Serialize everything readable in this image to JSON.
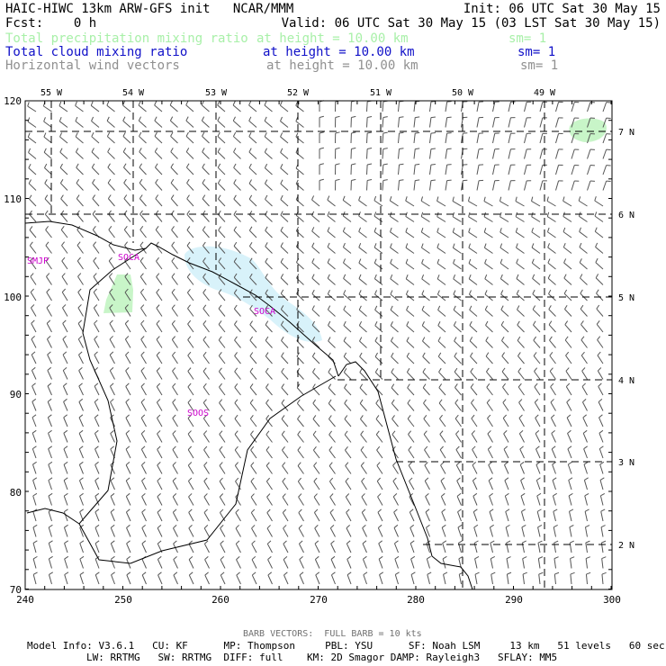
{
  "header": {
    "left1": "HAIC-HIWC 13km ARW-GFS init   NCAR/MMM",
    "right1": "Init: 06 UTC Sat 30 May 15",
    "left2": "Fcst:    0 h",
    "right2": "Valid: 06 UTC Sat 30 May 15 (03 LST Sat 30 May 15)"
  },
  "fields": [
    {
      "name": "Total precipitation mixing ratio",
      "height": "at height = 10.00 km",
      "sm": "sm= 1",
      "color": "#a8f0a8"
    },
    {
      "name": "Total cloud mixing ratio",
      "height": "at height = 10.00 km",
      "sm": "sm= 1",
      "color": "#1010c8"
    },
    {
      "name": "Horizontal wind vectors",
      "height": "at height = 10.00 km",
      "sm": "sm= 1",
      "color": "#909090"
    }
  ],
  "map": {
    "top_labels": [
      "55 W",
      "54 W",
      "53 W",
      "52 W",
      "51 W",
      "50 W",
      "49 W"
    ],
    "right_labels": [
      "7 N",
      "6 N",
      "5 N",
      "4 N",
      "3 N",
      "2 N"
    ],
    "left_ticks": [
      "120",
      "110",
      "100",
      "90",
      "80",
      "70"
    ],
    "bottom_ticks": [
      "240",
      "250",
      "260",
      "270",
      "280",
      "290",
      "300"
    ],
    "stations": [
      "SMJP",
      "SOCA",
      "SOCA",
      "SOOS"
    ],
    "cloud_color": "#d8f2fa",
    "precip_color": "#c8f5c8",
    "station_color": "#cc00cc"
  },
  "footer": {
    "barb_note": "BARB VECTORS:  FULL BARB = 10 kts",
    "line1": "Model Info: V3.6.1   CU: KF      MP: Thompson     PBL: YSU      SF: Noah LSM     13 km   51 levels   60 sec",
    "line2": "LW: RRTMG   SW: RRTMG  DIFF: full    KM: 2D Smagor DAMP: Rayleigh3   SFLAY: MM5"
  }
}
